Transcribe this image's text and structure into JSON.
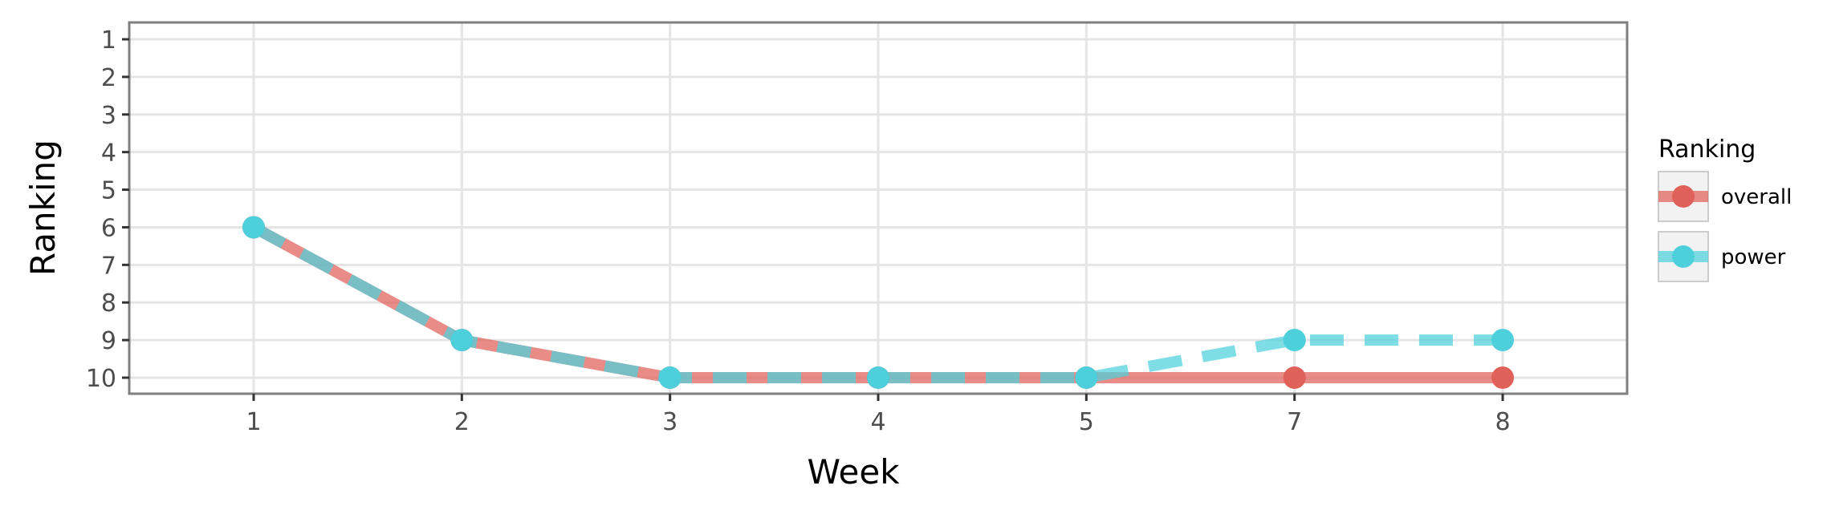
{
  "chart_data": {
    "type": "line",
    "xlabel": "Week",
    "ylabel": "Ranking",
    "categories": [
      "1",
      "2",
      "3",
      "4",
      "5",
      "7",
      "8"
    ],
    "y_ticks": [
      "1",
      "2",
      "3",
      "4",
      "5",
      "6",
      "7",
      "8",
      "9",
      "10"
    ],
    "ylim": [
      1,
      10
    ],
    "y_reversed": true,
    "grid": true,
    "legend": {
      "title": "Ranking",
      "placement": "right"
    },
    "series": [
      {
        "name": "overall",
        "values": [
          6,
          9,
          10,
          10,
          10,
          10,
          10
        ],
        "color": "#e0605a",
        "line_style": "solid"
      },
      {
        "name": "power",
        "values": [
          6,
          9,
          10,
          10,
          10,
          9,
          9
        ],
        "color": "#4dd0dc",
        "line_style": "dashed"
      }
    ]
  }
}
